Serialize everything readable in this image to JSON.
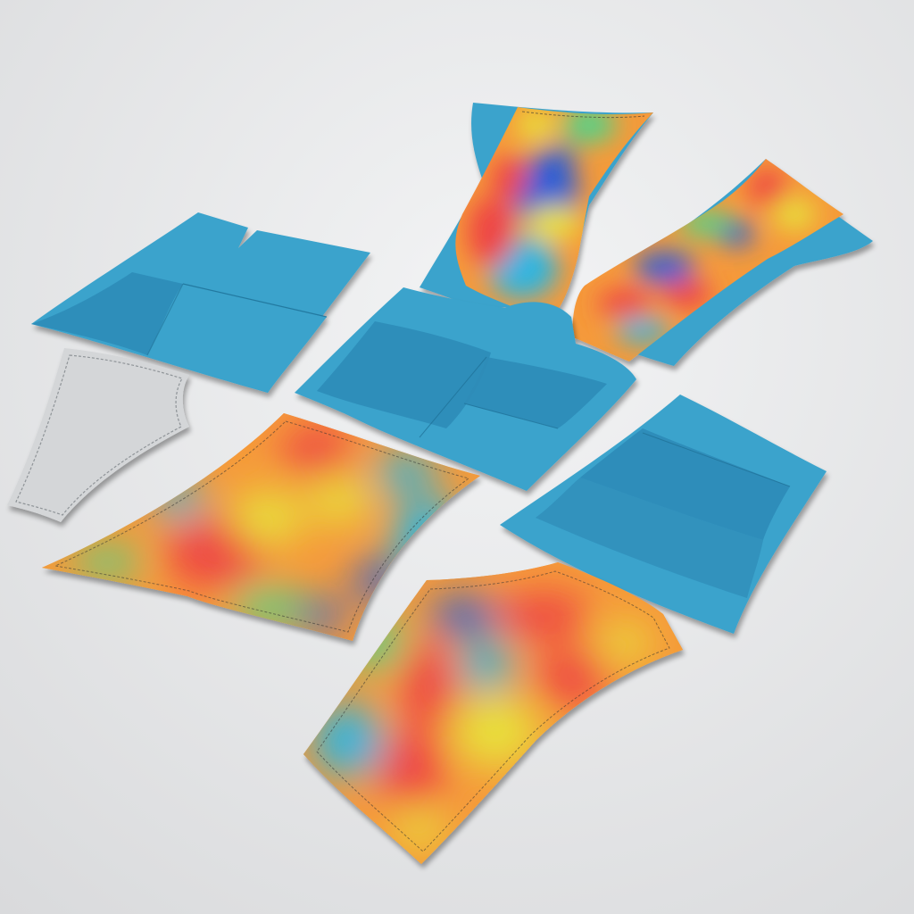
{
  "scene": {
    "description_visible_text": "",
    "background_color": "#ebecee",
    "piece_base_color": "#3aa3cc",
    "piece_shade_color": "#2e8cb8",
    "piece_grey_color": "#d4d6d8",
    "heatmap_colors": [
      "#2f5fd6",
      "#2fb5e0",
      "#4fd48a",
      "#e8e03a",
      "#f59a3a",
      "#ee4444"
    ]
  }
}
